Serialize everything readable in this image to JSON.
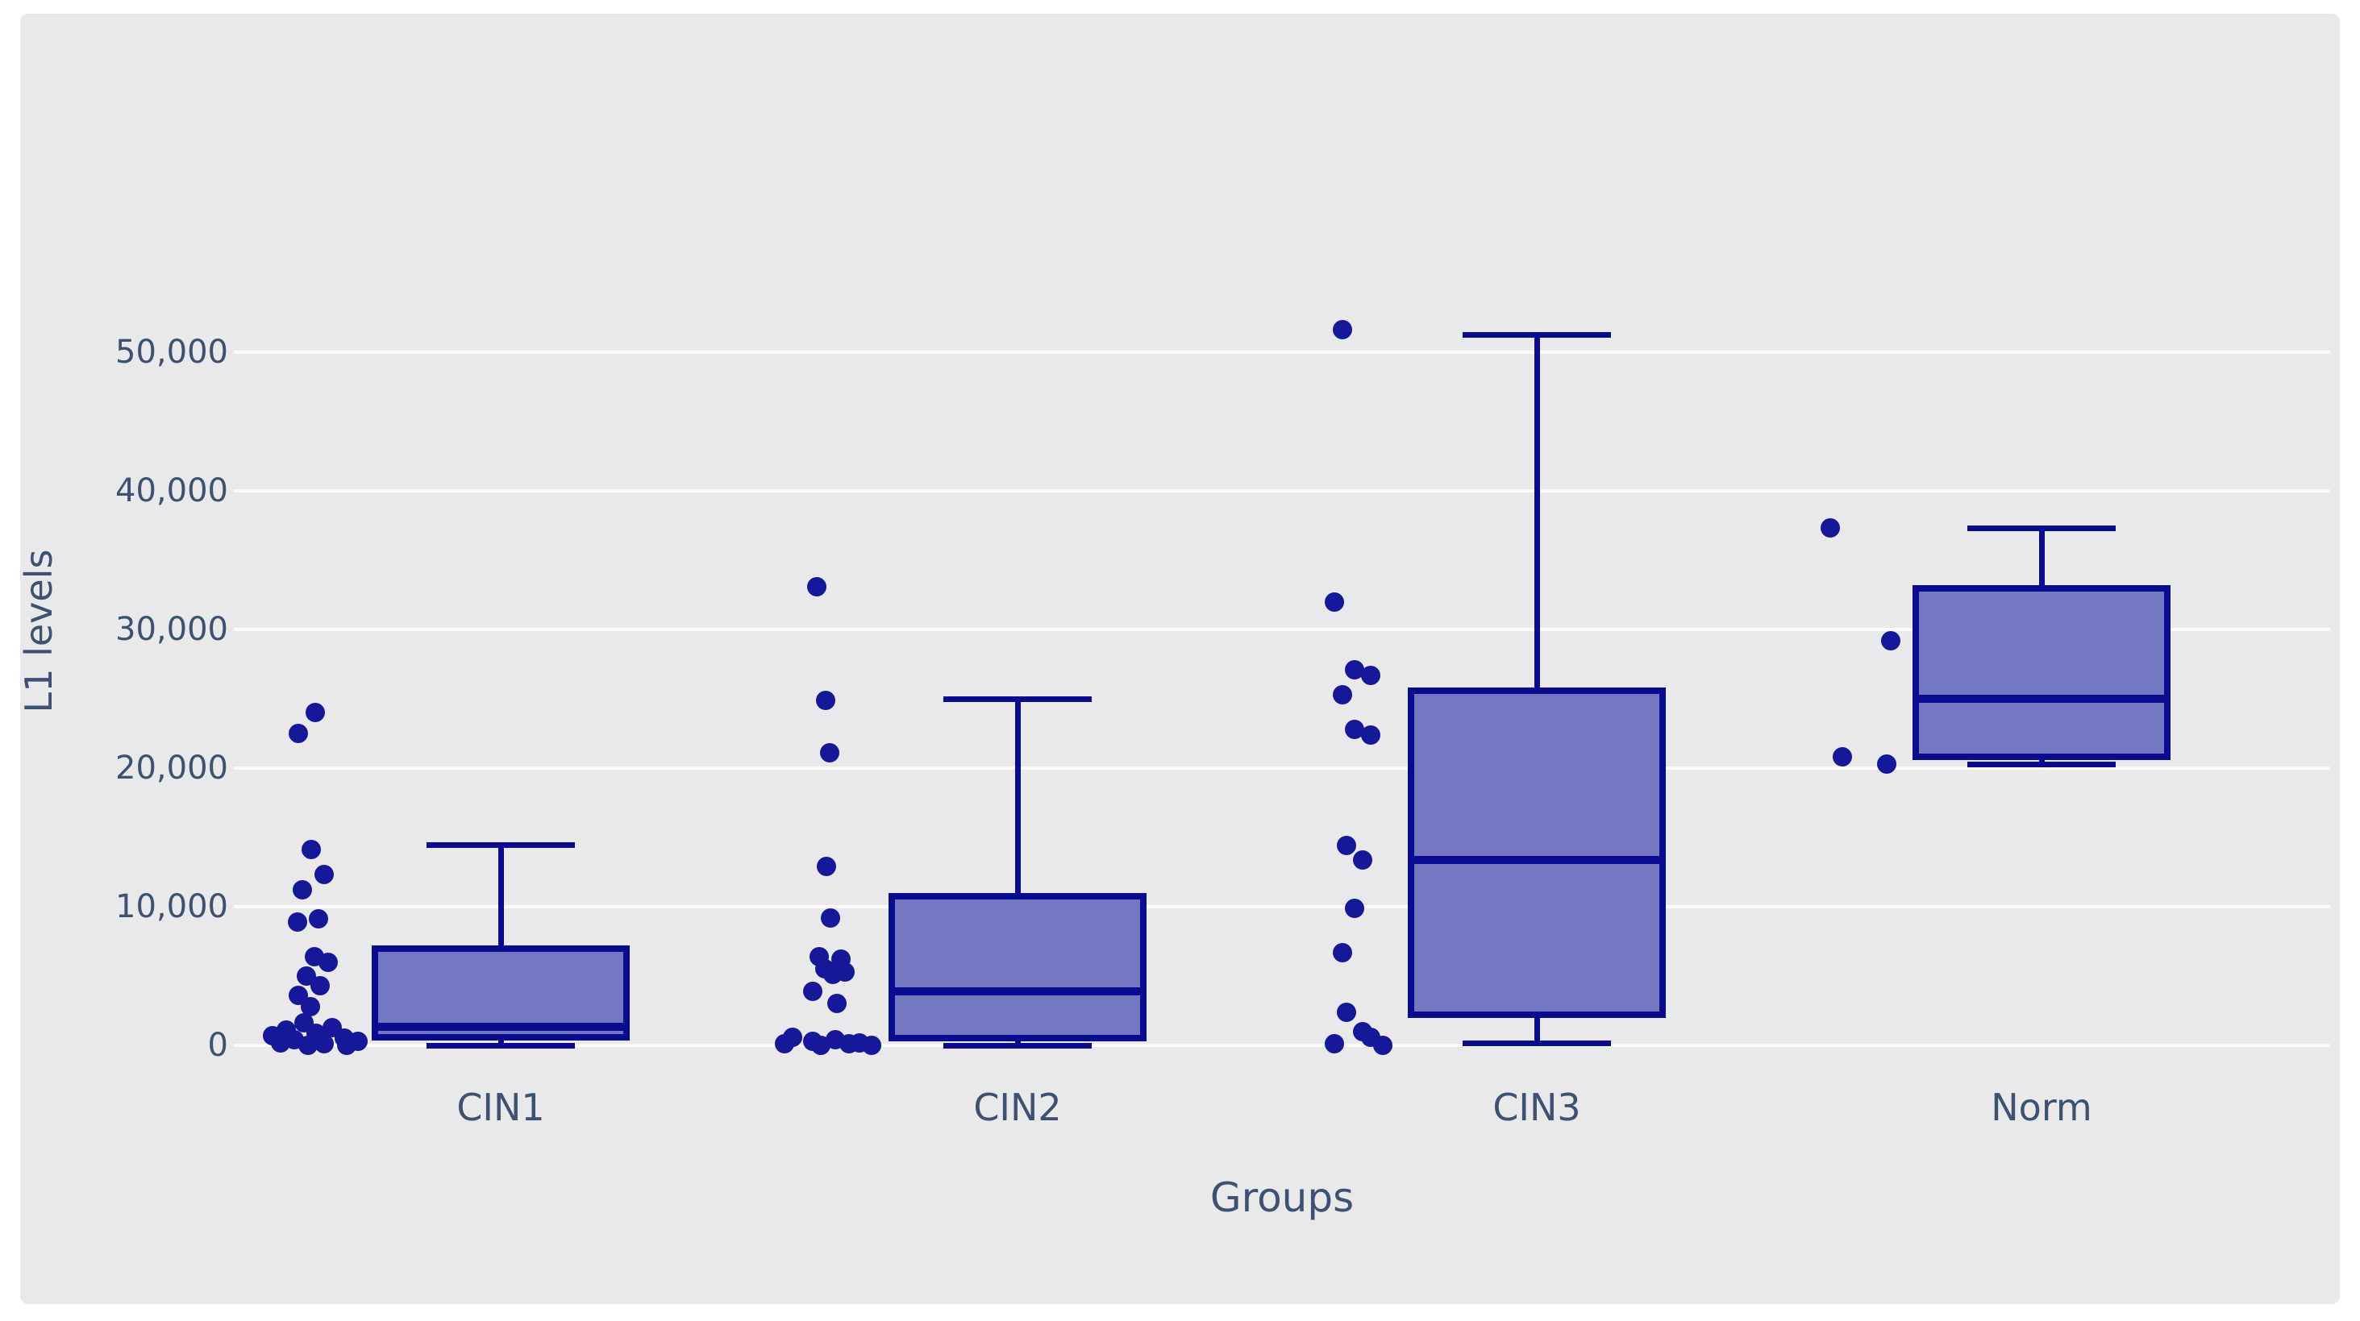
{
  "colors": {
    "page_bg": "#ffffff",
    "panel_bg": "#e9e9eb",
    "grid": "#fafafa",
    "text": "#3d5170",
    "dot": "#17179a",
    "box_fill": "#7477c1",
    "box_border": "#0b0b90"
  },
  "y_axis": {
    "title": "L1 levels",
    "ticks": [
      {
        "label": "0",
        "value": 0
      },
      {
        "label": "10,000",
        "value": 10000
      },
      {
        "label": "20,000",
        "value": 20000
      },
      {
        "label": "30,000",
        "value": 30000
      },
      {
        "label": "40,000",
        "value": 40000
      },
      {
        "label": "50,000",
        "value": 50000
      }
    ]
  },
  "x_axis": {
    "title": "Groups",
    "categories": [
      "CIN1",
      "CIN2",
      "CIN3",
      "Norm"
    ]
  },
  "chart_data": {
    "type": "box",
    "title": "",
    "xlabel": "Groups",
    "ylabel": "L1 levels",
    "ylim": [
      0,
      52500
    ],
    "grid": true,
    "legend": false,
    "groups": [
      {
        "label": "CIN1",
        "box": {
          "min": 0,
          "q1": 350,
          "median": 1340,
          "q3": 7200,
          "max": 14500
        },
        "points": [
          {
            "v": 24000,
            "j": 5
          },
          {
            "v": 22500,
            "j": -16
          },
          {
            "v": 14100,
            "j": 0
          },
          {
            "v": 12300,
            "j": 16
          },
          {
            "v": 11200,
            "j": -11
          },
          {
            "v": 9100,
            "j": 9
          },
          {
            "v": 8900,
            "j": -17
          },
          {
            "v": 6400,
            "j": 4
          },
          {
            "v": 6000,
            "j": 21
          },
          {
            "v": 5000,
            "j": -6
          },
          {
            "v": 4300,
            "j": 11
          },
          {
            "v": 3600,
            "j": -16
          },
          {
            "v": 2800,
            "j": -1
          },
          {
            "v": 1600,
            "j": -9
          },
          {
            "v": 1300,
            "j": 26
          },
          {
            "v": 1100,
            "j": -31
          },
          {
            "v": 900,
            "j": 6
          },
          {
            "v": 700,
            "j": -48
          },
          {
            "v": 500,
            "j": 41
          },
          {
            "v": 400,
            "j": -21
          },
          {
            "v": 300,
            "j": 58
          },
          {
            "v": 200,
            "j": -38
          },
          {
            "v": 100,
            "j": 16
          },
          {
            "v": 0,
            "j": -4
          },
          {
            "v": 0,
            "j": 44
          }
        ]
      },
      {
        "label": "CIN2",
        "box": {
          "min": 0,
          "q1": 290,
          "median": 3900,
          "q3": 11000,
          "max": 25000
        },
        "points": [
          {
            "v": 33100,
            "j": -14
          },
          {
            "v": 24900,
            "j": -3
          },
          {
            "v": 21100,
            "j": 2
          },
          {
            "v": 12900,
            "j": -2
          },
          {
            "v": 9200,
            "j": 3
          },
          {
            "v": 6400,
            "j": -11
          },
          {
            "v": 6200,
            "j": 16
          },
          {
            "v": 5500,
            "j": -4
          },
          {
            "v": 5300,
            "j": 21
          },
          {
            "v": 5100,
            "j": 6
          },
          {
            "v": 3900,
            "j": -19
          },
          {
            "v": 3000,
            "j": 11
          },
          {
            "v": 600,
            "j": -44
          },
          {
            "v": 400,
            "j": 9
          },
          {
            "v": 300,
            "j": -19
          },
          {
            "v": 200,
            "j": 39
          },
          {
            "v": 100,
            "j": -54
          },
          {
            "v": 100,
            "j": 26
          },
          {
            "v": 0,
            "j": -9
          },
          {
            "v": 0,
            "j": 54
          }
        ]
      },
      {
        "label": "CIN3",
        "box": {
          "min": 200,
          "q1": 2000,
          "median": 13400,
          "q3": 25800,
          "max": 51300
        },
        "points": [
          {
            "v": 51600,
            "j": -6
          },
          {
            "v": 32000,
            "j": -16
          },
          {
            "v": 27100,
            "j": 9
          },
          {
            "v": 26700,
            "j": 29
          },
          {
            "v": 25300,
            "j": -6
          },
          {
            "v": 22800,
            "j": 9
          },
          {
            "v": 22400,
            "j": 29
          },
          {
            "v": 14400,
            "j": -1
          },
          {
            "v": 13400,
            "j": 19
          },
          {
            "v": 9900,
            "j": 9
          },
          {
            "v": 6700,
            "j": -6
          },
          {
            "v": 2400,
            "j": -1
          },
          {
            "v": 1000,
            "j": 19
          },
          {
            "v": 600,
            "j": 29
          },
          {
            "v": 100,
            "j": -16
          },
          {
            "v": 0,
            "j": 44
          }
        ]
      },
      {
        "label": "Norm",
        "box": {
          "min": 20300,
          "q1": 20600,
          "median": 25000,
          "q3": 33200,
          "max": 37300
        },
        "points": [
          {
            "v": 37300,
            "j": -27
          },
          {
            "v": 29200,
            "j": 48
          },
          {
            "v": 20800,
            "j": -12
          },
          {
            "v": 20300,
            "j": 43
          }
        ]
      }
    ]
  }
}
